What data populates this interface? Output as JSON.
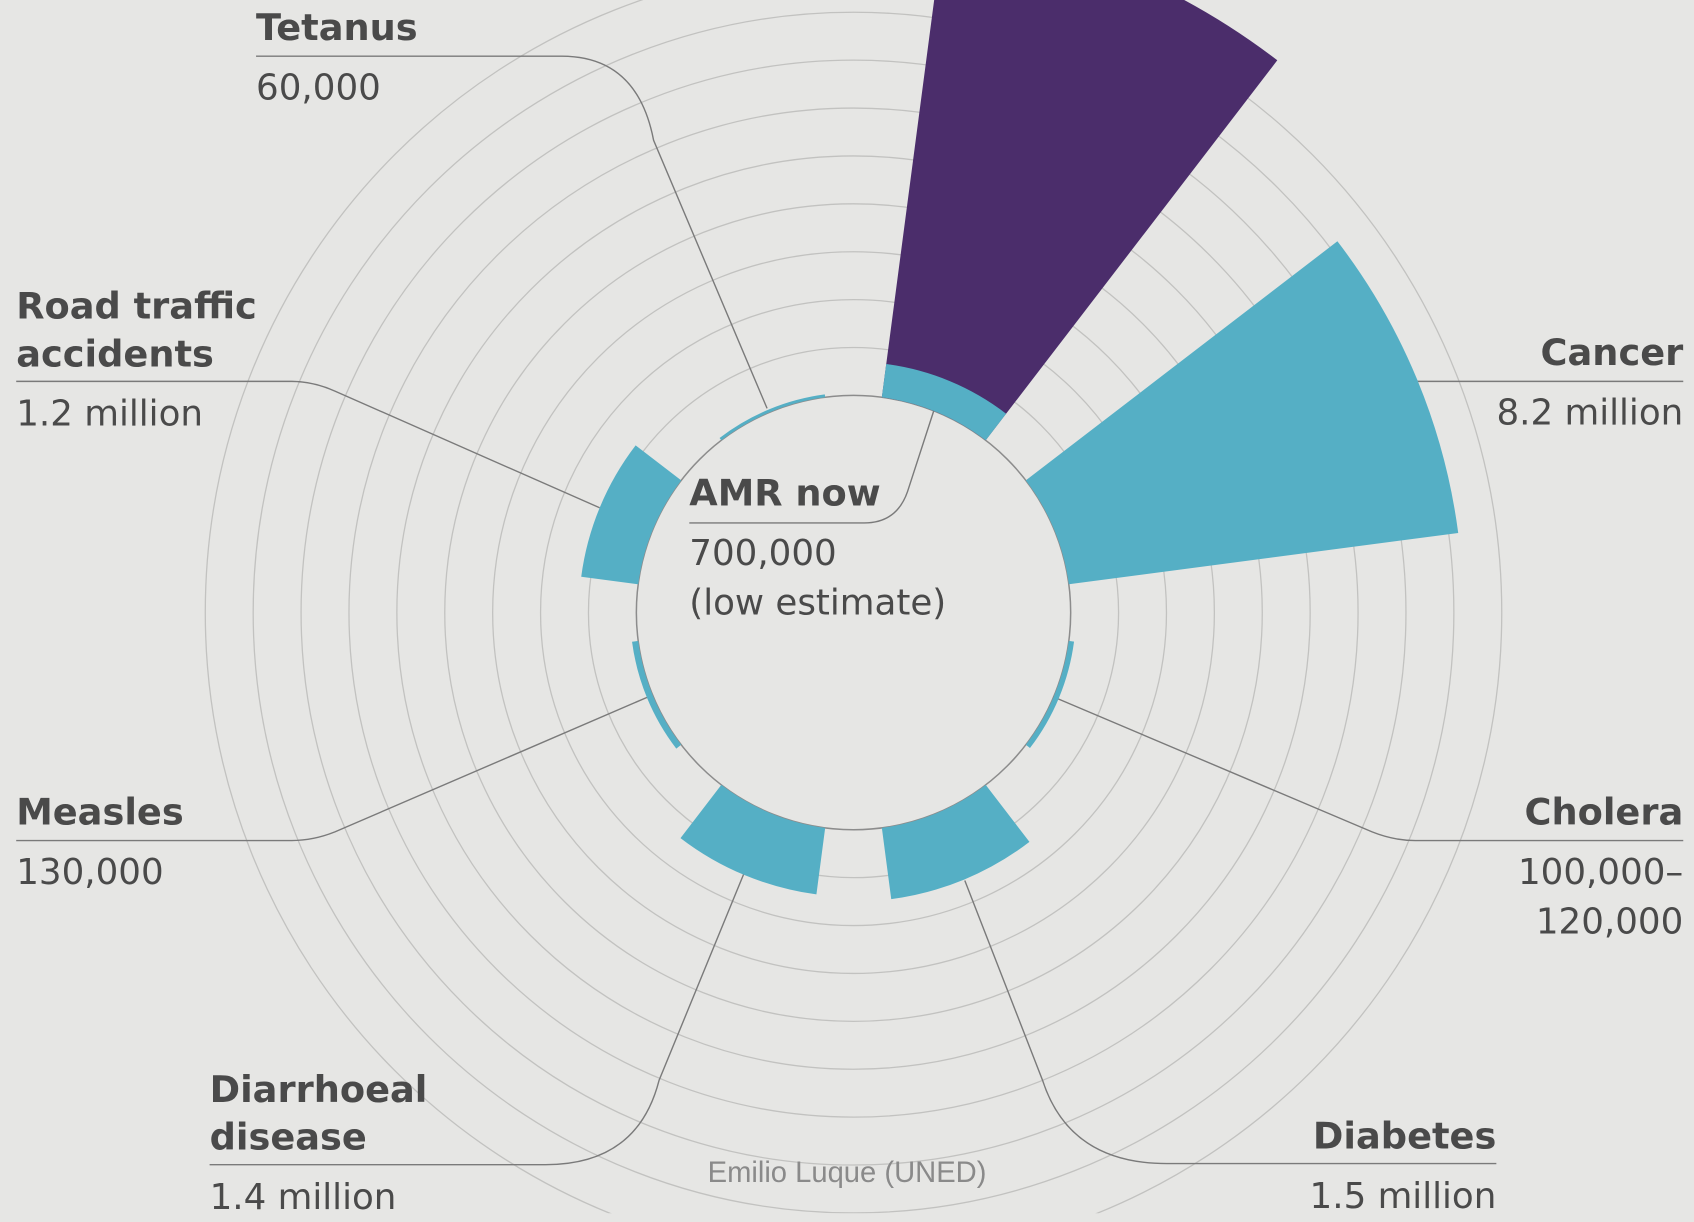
{
  "chart_data": {
    "type": "polar-bar",
    "categories": [
      "AMR now",
      "Cancer",
      "Cholera",
      "Diabetes",
      "Diarrhoeal disease",
      "Measles",
      "Road traffic accidents",
      "Tetanus"
    ],
    "series": [
      {
        "color": "#4b2d6b",
        "values": [
          10000000,
          null,
          null,
          null,
          null,
          null,
          null,
          null
        ]
      },
      {
        "color": "#55afc5",
        "values": [
          700000,
          8200000,
          110000,
          1500000,
          1400000,
          130000,
          1200000,
          60000
        ],
        "value_labels": [
          "700,000",
          "8.2 million",
          "100,000–120,000",
          "1.5 million",
          "1.4 million",
          "130,000",
          "1.2 million",
          "60,000"
        ]
      }
    ],
    "note": "(low estimate)",
    "rlim": [
      0,
      9000000
    ],
    "rticks": [
      0,
      1000000,
      2000000,
      3000000,
      4000000,
      5000000,
      6000000,
      7000000,
      8000000,
      9000000
    ],
    "source": "Emilio Luque (UNED)"
  }
}
